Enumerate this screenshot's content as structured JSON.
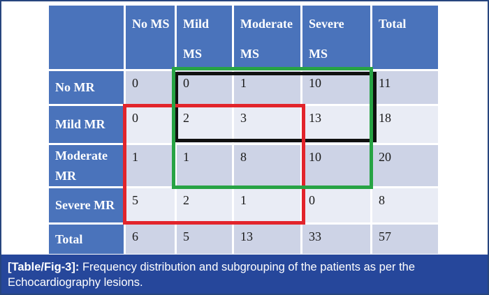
{
  "figure": {
    "caption_prefix": "[Table/Fig-3]:",
    "caption_text": "Frequency distribution and subgrouping of the patients as per the Echocardiography lesions."
  },
  "table": {
    "col_headers": [
      {
        "line1": "",
        "line2": ""
      },
      {
        "line1": "No MS",
        "line2": ""
      },
      {
        "line1": "Mild",
        "line2": "MS"
      },
      {
        "line1": "Moderate",
        "line2": "MS"
      },
      {
        "line1": "Severe",
        "line2": "MS"
      },
      {
        "line1": "Total",
        "line2": ""
      }
    ],
    "rows": [
      {
        "label": "No MR",
        "values": [
          "0",
          "0",
          "1",
          "10",
          "11"
        ]
      },
      {
        "label": "Mild MR",
        "values": [
          "0",
          "2",
          "3",
          "13",
          "18"
        ]
      },
      {
        "label": "Moderate MR",
        "values": [
          "1",
          "1",
          "8",
          "10",
          "20"
        ]
      },
      {
        "label": "Severe MR",
        "values": [
          "5",
          "2",
          "1",
          "0",
          "8"
        ]
      },
      {
        "label": "Total",
        "values": [
          "6",
          "5",
          "13",
          "33",
          "57"
        ]
      }
    ]
  },
  "chart_data": {
    "type": "table",
    "title": "[Table/Fig-3]: Frequency distribution and subgrouping of the patients as per the Echocardiography lesions.",
    "columns": [
      "",
      "No MS",
      "Mild MS",
      "Moderate MS",
      "Severe MS",
      "Total"
    ],
    "rows": [
      [
        "No MR",
        0,
        0,
        1,
        10,
        11
      ],
      [
        "Mild MR",
        0,
        2,
        3,
        13,
        18
      ],
      [
        "Moderate MR",
        1,
        1,
        8,
        10,
        20
      ],
      [
        "Severe MR",
        5,
        2,
        1,
        0,
        8
      ],
      [
        "Total",
        6,
        5,
        13,
        33,
        57
      ]
    ]
  },
  "overlays": [
    {
      "name": "black-rectangle",
      "color": "#101010",
      "covers": "No MR and Mild MR rows across Mild MS to Severe MS columns"
    },
    {
      "name": "red-rectangle",
      "color": "#e2242b",
      "covers": "Mild MR to Severe MR rows across No MS to Moderate MS columns"
    },
    {
      "name": "green-rectangle",
      "color": "#27a344",
      "covers": "No MR to Moderate MR rows across Mild MS to Severe MS columns"
    }
  ],
  "colors": {
    "header_blue": "#4a73bb",
    "row_dark": "#cdd3e6",
    "row_light": "#e9ecf5",
    "caption_bg": "#26479b",
    "frame_border": "#27457e"
  }
}
